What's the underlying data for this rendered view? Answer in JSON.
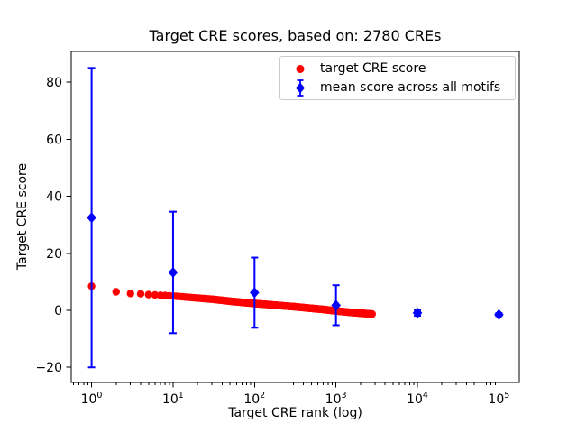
{
  "chart_data": {
    "type": "scatter",
    "title": "Target CRE scores, based on: 2780 CREs",
    "xlabel": "Target CRE rank (log)",
    "ylabel": "Target CRE score",
    "x_scale": "log",
    "xlim_log10": [
      -0.25,
      5.25
    ],
    "ylim": [
      -25.3,
      90.8
    ],
    "x_major_ticks": [
      1,
      10,
      100,
      1000,
      10000,
      100000
    ],
    "x_tick_labels": [
      "10^0",
      "10^1",
      "10^2",
      "10^3",
      "10^4",
      "10^5"
    ],
    "y_ticks": [
      -20,
      0,
      20,
      40,
      60,
      80
    ],
    "grid": false,
    "legend": {
      "position": "upper right"
    },
    "series": [
      {
        "name": "target CRE score",
        "marker": "circle",
        "color": "#ff0000",
        "n_points": 2780,
        "sampled_points": {
          "rank": [
            1,
            2,
            3,
            4,
            5,
            7,
            10,
            15,
            20,
            30,
            50,
            70,
            100,
            150,
            200,
            300,
            500,
            700,
            1000,
            1500,
            2000,
            2780
          ],
          "score": [
            8.5,
            6.5,
            5.9,
            5.8,
            5.5,
            5.3,
            5.0,
            4.6,
            4.3,
            3.9,
            3.2,
            2.8,
            2.4,
            2.0,
            1.7,
            1.3,
            0.7,
            0.3,
            -0.2,
            -0.7,
            -1.0,
            -1.3
          ]
        }
      },
      {
        "name": "mean score across all motifs",
        "marker": "diamond",
        "color": "#0000ff",
        "x": [
          1,
          10,
          100,
          1000,
          10000,
          100000
        ],
        "y": [
          32.5,
          13.3,
          6.2,
          1.8,
          -0.9,
          -1.5
        ],
        "yerr": [
          52.5,
          21.3,
          12.3,
          7.0,
          1.0,
          0.5
        ]
      }
    ]
  }
}
